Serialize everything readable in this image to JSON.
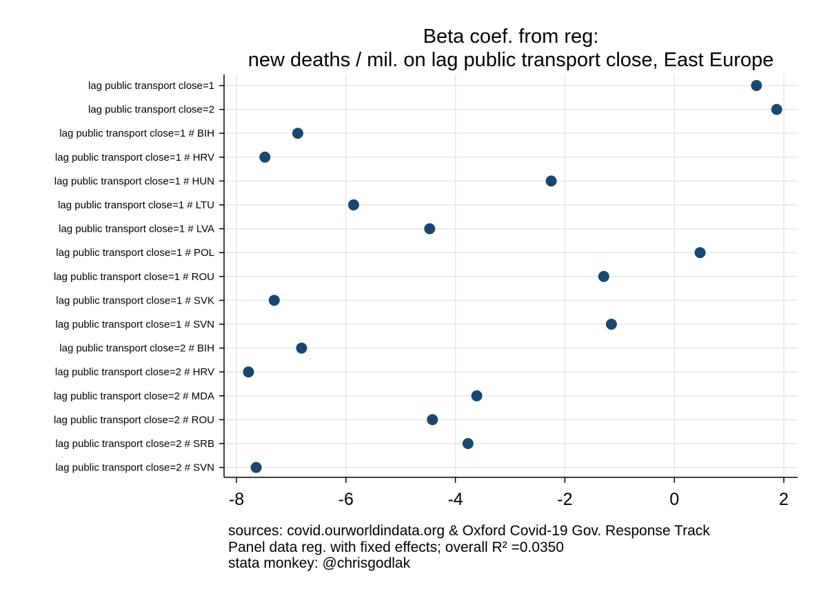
{
  "chart_data": {
    "type": "scatter",
    "title": [
      "Beta coef. from reg:",
      "new deaths / mil. on lag public transport close, East Europe"
    ],
    "xlabel": "",
    "ylabel": "",
    "xlim": [
      -8.2,
      2.2
    ],
    "xticks": [
      -8,
      -6,
      -4,
      -2,
      0,
      2
    ],
    "xtick_labels": [
      "-8",
      "-6",
      "-4",
      "-2",
      "0",
      "2"
    ],
    "grid": true,
    "marker_color": "#1a476f",
    "categories": [
      "lag public transport close=1",
      "lag public transport close=2",
      "lag public transport close=1 # BIH",
      "lag public transport close=1 # HRV",
      "lag public transport close=1 # HUN",
      "lag public transport close=1 # LTU",
      "lag public transport close=1 # LVA",
      "lag public transport close=1 # POL",
      "lag public transport close=1 # ROU",
      "lag public transport close=1 # SVK",
      "lag public transport close=1 # SVN",
      "lag public transport close=2 # BIH",
      "lag public transport close=2 # HRV",
      "lag public transport close=2 # MDA",
      "lag public transport close=2 # ROU",
      "lag public transport close=2 # SRB",
      "lag public transport close=2 # SVN"
    ],
    "values": [
      1.5,
      1.87,
      -6.88,
      -7.48,
      -2.25,
      -5.86,
      -4.47,
      0.47,
      -1.29,
      -7.31,
      -1.15,
      -6.81,
      -7.78,
      -3.61,
      -4.42,
      -3.77,
      -7.64
    ]
  },
  "notes": [
    "sources: covid.ourworldindata.org & Oxford Covid-19 Gov. Response Track",
    "Panel data reg. with fixed effects; overall R² =0.0350",
    "stata monkey: @chrisgodlak"
  ]
}
